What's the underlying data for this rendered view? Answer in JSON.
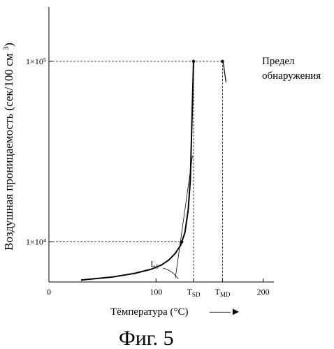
{
  "chart_data": {
    "type": "line",
    "title": "",
    "ylabel": "Воздушная проницаемость (сек/100 см3)",
    "xlabel": "Tёмпература (°C)",
    "y_scale": "log",
    "ylim": [
      6000,
      200000
    ],
    "y_ticks": [
      {
        "value": 10000,
        "label": "1×10⁴"
      },
      {
        "value": 100000,
        "label": "1×10⁵"
      }
    ],
    "x_ticks": [
      {
        "value": 0,
        "label": "0"
      },
      {
        "value": 100,
        "label": "100"
      },
      {
        "value": 200,
        "label": "200"
      }
    ],
    "xlim": [
      0,
      210
    ],
    "special_ticks": [
      {
        "name": "T_SD",
        "base": "T",
        "sub": "SD",
        "value": 135
      },
      {
        "name": "T_MD",
        "base": "T",
        "sub": "MD",
        "value": 162
      }
    ],
    "series": [
      {
        "x": [
          30,
          60,
          80,
          95,
          105,
          112,
          118,
          123,
          127,
          130,
          132,
          135
        ],
        "y": [
          6150,
          6400,
          6700,
          7050,
          7450,
          7950,
          8650,
          9600,
          11300,
          15000,
          22000,
          100000
        ]
      }
    ],
    "key_points": [
      {
        "x": 124,
        "y": 10000
      },
      {
        "x": 135,
        "y": 100000
      },
      {
        "x": 162,
        "y": 100000
      }
    ],
    "tangent_line": {
      "x": [
        118,
        134
      ],
      "y": [
        6300,
        30000
      ]
    },
    "annotations": {
      "curve_label": {
        "base": "L",
        "sub": "5"
      },
      "limit_label_line1": "Предел",
      "limit_label_line2": "обнаружения"
    },
    "arrow_text": "——►",
    "grid": false
  },
  "figure_caption": "Фиг. 5"
}
